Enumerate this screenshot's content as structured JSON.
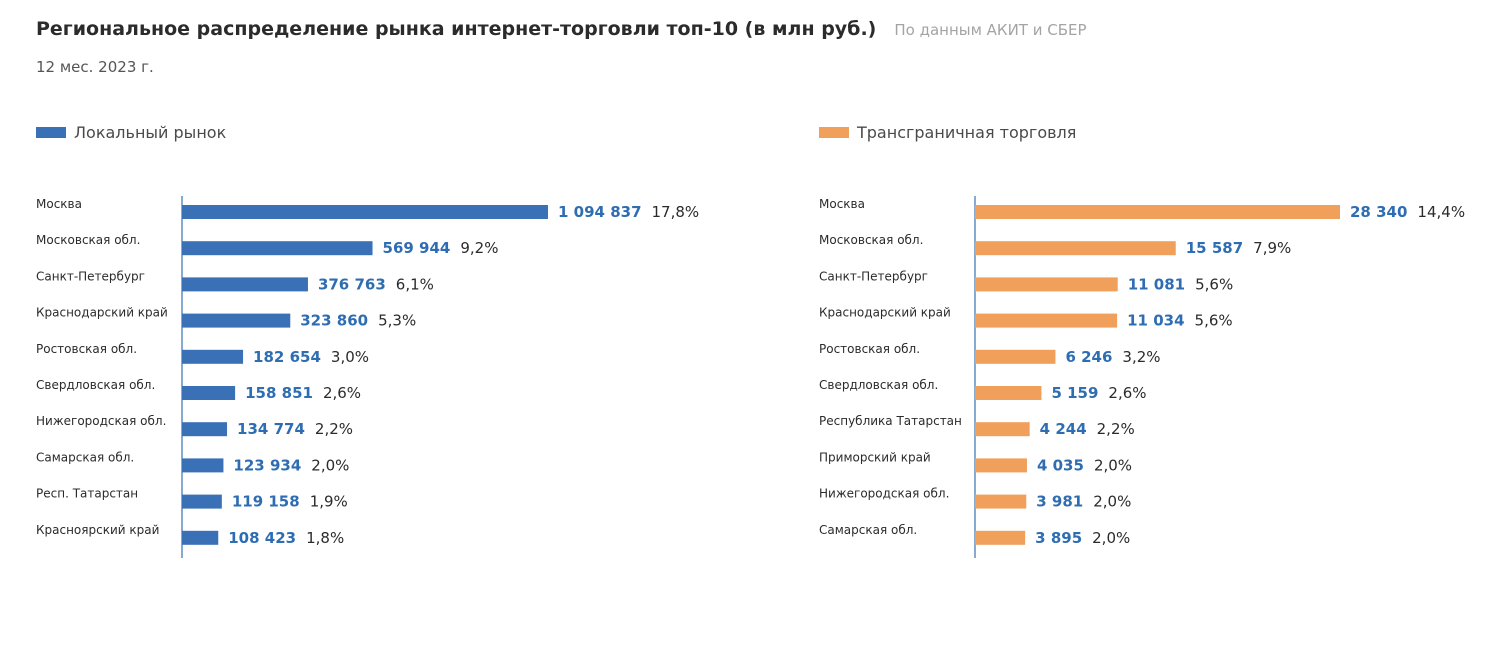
{
  "header": {
    "title": "Региональное распределение рынка интернет-торговли топ-10 (в млн руб.)",
    "source": "По данным АКИТ и СБЕР",
    "period": "12 мес. 2023 г."
  },
  "colors": {
    "local": "#3a70b5",
    "cross": "#f0a05a",
    "value_text": "#2f6db3",
    "axis": "#3a70b5"
  },
  "chart_data": [
    {
      "type": "bar",
      "orientation": "horizontal",
      "title": "Локальный рынок",
      "series_name": "Локальный рынок",
      "color": "#3a70b5",
      "categories": [
        "Москва",
        "Московская обл.",
        "Санкт-Петербург",
        "Краснодарский край",
        "Ростовская обл.",
        "Свердловская обл.",
        "Нижегородская обл.",
        "Самарская обл.",
        "Респ. Татарстан",
        "Красноярский край"
      ],
      "values": [
        1094837,
        569944,
        376763,
        323860,
        182654,
        158851,
        134774,
        123934,
        119158,
        108423
      ],
      "value_labels": [
        "1 094 837",
        "569 944",
        "376 763",
        "323 860",
        "182 654",
        "158 851",
        "134 774",
        "123 934",
        "119 158",
        "108 423"
      ],
      "percent_labels": [
        "17,8%",
        "9,2%",
        "6,1%",
        "5,3%",
        "3,0%",
        "2,6%",
        "2,2%",
        "2,0%",
        "1,9%",
        "1,8%"
      ],
      "unit": "млн руб."
    },
    {
      "type": "bar",
      "orientation": "horizontal",
      "title": "Трансграничная торговля",
      "series_name": "Трансграничная торговля",
      "color": "#f0a05a",
      "categories": [
        "Москва",
        "Московская обл.",
        "Санкт-Петербург",
        "Краснодарский край",
        "Ростовская обл.",
        "Свердловская обл.",
        "Республика Татарстан",
        "Приморский край",
        "Нижегородская обл.",
        "Самарская обл."
      ],
      "values": [
        28340,
        15587,
        11081,
        11034,
        6246,
        5159,
        4244,
        4035,
        3981,
        3895
      ],
      "value_labels": [
        "28 340",
        "15 587",
        "11 081",
        "11 034",
        "6 246",
        "5 159",
        "4 244",
        "4 035",
        "3 981",
        "3 895"
      ],
      "percent_labels": [
        "14,4%",
        "7,9%",
        "5,6%",
        "5,6%",
        "3,2%",
        "2,6%",
        "2,2%",
        "2,0%",
        "2,0%",
        "2,0%"
      ],
      "unit": "млн руб."
    }
  ]
}
